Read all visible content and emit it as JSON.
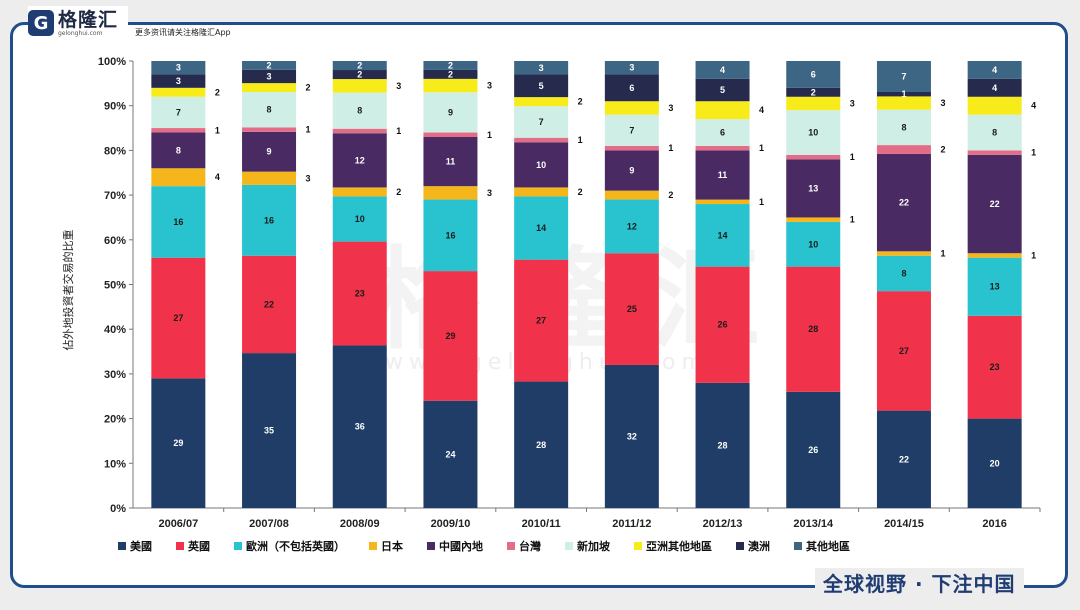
{
  "brand": {
    "logo_letter": "G",
    "logo_name": "格隆汇",
    "logo_domain": "gelonghui.com",
    "tagline": "更多资讯请关注格隆汇App",
    "slogan": "全球视野 · 下注中国"
  },
  "watermark": {
    "text": "格隆汇",
    "url": "www.gelonghui.com"
  },
  "colors": {
    "美國": "#1f3d66",
    "英國": "#f0334a",
    "歐洲": "#28c3cf",
    "日本": "#f5b61c",
    "中國內地": "#4a2a63",
    "台灣": "#e36c86",
    "新加坡": "#cfeee6",
    "亞洲其他地區": "#f7ec1a",
    "澳洲": "#262a4d",
    "其他地區": "#3d6685"
  },
  "chart_data": {
    "type": "bar",
    "stacked": true,
    "ylabel": "佔外地投資者交易的比重",
    "ylim": [
      0,
      100
    ],
    "yticks": [
      "0%",
      "10%",
      "20%",
      "30%",
      "40%",
      "50%",
      "60%",
      "70%",
      "80%",
      "90%",
      "100%"
    ],
    "categories": [
      "2006/07",
      "2007/08",
      "2008/09",
      "2009/10",
      "2010/11",
      "2011/12",
      "2012/13",
      "2013/14",
      "2014/15",
      "2016"
    ],
    "legend_position": "bottom",
    "series": [
      {
        "name": "美國",
        "values": [
          29,
          35,
          36,
          24,
          28,
          32,
          28,
          26,
          22,
          20
        ]
      },
      {
        "name": "英國",
        "values": [
          27,
          22,
          23,
          29,
          27,
          25,
          26,
          28,
          27,
          23
        ]
      },
      {
        "name": "歐洲（不包括英國）",
        "values": [
          16,
          16,
          10,
          16,
          14,
          12,
          14,
          10,
          8,
          13
        ]
      },
      {
        "name": "日本",
        "values": [
          4,
          3,
          2,
          3,
          2,
          2,
          1,
          1,
          1,
          1
        ]
      },
      {
        "name": "中國內地",
        "values": [
          8,
          9,
          12,
          11,
          10,
          9,
          11,
          13,
          22,
          22
        ]
      },
      {
        "name": "台灣",
        "values": [
          1,
          1,
          1,
          1,
          1,
          1,
          1,
          1,
          2,
          1
        ]
      },
      {
        "name": "新加坡",
        "values": [
          7,
          8,
          8,
          9,
          7,
          7,
          6,
          10,
          8,
          8
        ]
      },
      {
        "name": "亞洲其他地區",
        "values": [
          2,
          2,
          3,
          3,
          2,
          3,
          4,
          3,
          3,
          4
        ]
      },
      {
        "name": "澳洲",
        "values": [
          3,
          3,
          2,
          2,
          5,
          6,
          5,
          2,
          1,
          4
        ]
      },
      {
        "name": "其他地區",
        "values": [
          3,
          2,
          2,
          2,
          3,
          3,
          4,
          6,
          7,
          4
        ]
      }
    ],
    "outside_labels": {
      "series": [
        "日本",
        "台灣",
        "亞洲其他地區"
      ]
    }
  }
}
